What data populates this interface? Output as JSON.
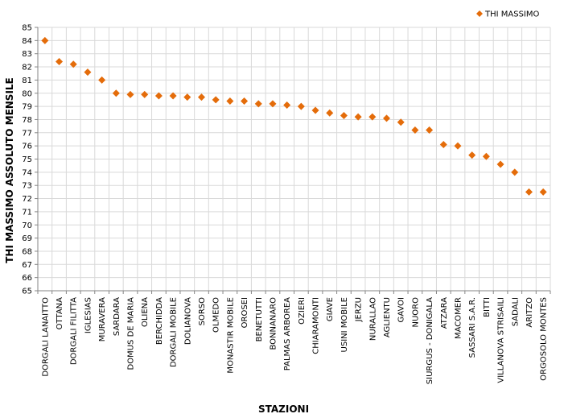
{
  "chart_data": {
    "type": "scatter",
    "title": "",
    "xlabel": "STAZIONI",
    "ylabel": "THI MASSIMO ASSOLUTO MENSILE",
    "ylim": [
      65,
      85
    ],
    "ytick_step": 1,
    "grid": true,
    "legend_position": "top-right",
    "categories": [
      "DORGALI LANAITTO",
      "OTTANA",
      "DORGALI FILITTA",
      "IGLESIAS",
      "MURAVERA",
      "SARDARA",
      "DOMUS DE MARIA",
      "OLIENA",
      "BERCHIDDA",
      "DORGALI MOBILE",
      "DOLIANOVA",
      "SORSO",
      "OLMEDO",
      "MONASTIR MOBILE",
      "OROSEI",
      "BENETUTTI",
      "BONNANARO",
      "PALMAS ARBOREA",
      "OZIERI",
      "CHIARAMONTI",
      "GIAVE",
      "USINI MOBILE",
      "JERZU",
      "NURALLAO",
      "AGLIENTU",
      "GAVOI",
      "NUORO",
      "SIURGUS - DONIGALA",
      "ATZARA",
      "MACOMER",
      "SASSARI S.A.R.",
      "BITTI",
      "VILLANOVA STRISAILI",
      "SADALI",
      "ARITZO",
      "ORGOSOLO MONTES"
    ],
    "series": [
      {
        "name": "THI MASSIMO",
        "color": "#E46C0A",
        "marker": "diamond",
        "values": [
          84.0,
          82.4,
          82.2,
          81.6,
          81.0,
          80.0,
          79.9,
          79.9,
          79.8,
          79.8,
          79.7,
          79.7,
          79.5,
          79.4,
          79.4,
          79.2,
          79.2,
          79.1,
          79.0,
          78.7,
          78.5,
          78.3,
          78.2,
          78.2,
          78.1,
          77.8,
          77.2,
          77.2,
          76.1,
          76.0,
          75.3,
          75.2,
          74.6,
          74.0,
          72.5,
          72.5
        ]
      }
    ]
  }
}
